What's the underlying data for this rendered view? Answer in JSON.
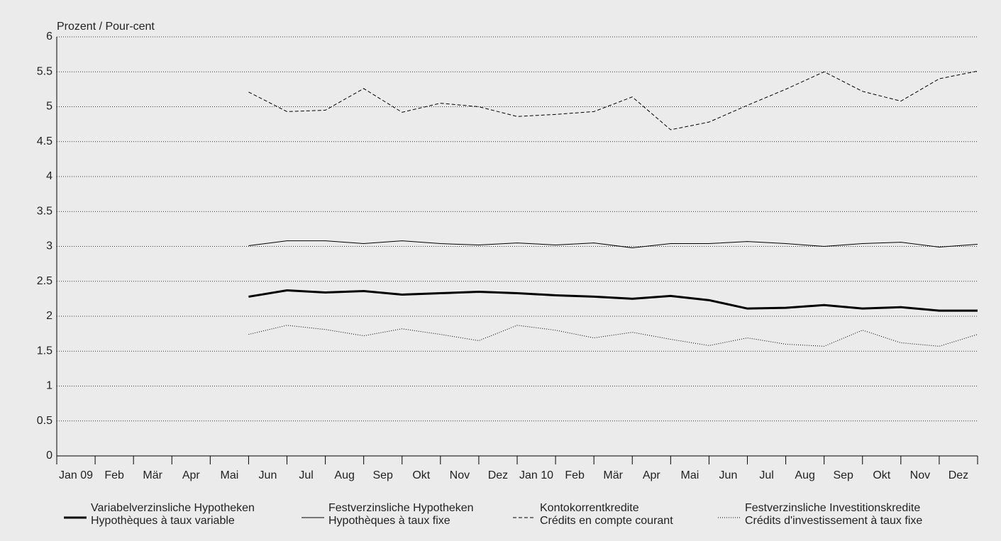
{
  "chart_data": {
    "type": "line",
    "y_label": "Prozent / Pour-cent",
    "categories": [
      "Jan 09",
      "Feb",
      "Mär",
      "Apr",
      "Mai",
      "Jun",
      "Jul",
      "Aug",
      "Sep",
      "Okt",
      "Nov",
      "Dez",
      "Jan 10",
      "Feb",
      "Mär",
      "Apr",
      "Mai",
      "Jun",
      "Jul",
      "Aug",
      "Sep",
      "Okt",
      "Nov",
      "Dez"
    ],
    "ylim": [
      0,
      6
    ],
    "yticks": [
      0,
      0.5,
      1,
      1.5,
      2,
      2.5,
      3,
      3.5,
      4,
      4.5,
      5,
      5.5,
      6
    ],
    "grid": true,
    "series": [
      {
        "name": [
          "Variabelverzinsliche Hypotheken",
          "Hypothèques à taux variable"
        ],
        "color": "#000000",
        "line_style": "solid",
        "line_width": 3,
        "values": [
          null,
          null,
          null,
          null,
          2.28,
          2.37,
          2.34,
          2.36,
          2.31,
          2.33,
          2.35,
          2.33,
          2.3,
          2.28,
          2.25,
          2.29,
          2.23,
          2.11,
          2.12,
          2.16,
          2.11,
          2.13,
          2.08,
          2.08
        ]
      },
      {
        "name": [
          "Festverzinsliche Hypotheken",
          "Hypothèques à taux fixe"
        ],
        "color": "#000000",
        "line_style": "solid",
        "line_width": 1,
        "values": [
          null,
          null,
          null,
          null,
          3.01,
          3.08,
          3.08,
          3.04,
          3.08,
          3.04,
          3.02,
          3.05,
          3.02,
          3.05,
          2.98,
          3.04,
          3.04,
          3.07,
          3.04,
          3.0,
          3.04,
          3.06,
          2.99,
          3.03
        ]
      },
      {
        "name": [
          "Kontokorrentkredite",
          "Crédits en compte courant"
        ],
        "color": "#000000",
        "line_style": "dashed",
        "line_width": 1,
        "values": [
          null,
          null,
          null,
          null,
          5.21,
          4.93,
          4.95,
          5.26,
          4.92,
          5.05,
          5.0,
          4.86,
          4.89,
          4.93,
          5.14,
          4.67,
          4.78,
          5.02,
          5.25,
          5.5,
          5.22,
          5.08,
          5.4,
          5.51
        ]
      },
      {
        "name": [
          "Festverzinsliche Investitionskredite",
          "Crédits d'investissement à taux fixe"
        ],
        "color": "#000000",
        "line_style": "dotted",
        "line_width": 1,
        "values": [
          null,
          null,
          null,
          null,
          1.74,
          1.87,
          1.81,
          1.72,
          1.82,
          1.74,
          1.65,
          1.87,
          1.8,
          1.69,
          1.77,
          1.67,
          1.58,
          1.69,
          1.6,
          1.57,
          1.8,
          1.62,
          1.57,
          1.74
        ]
      }
    ]
  }
}
